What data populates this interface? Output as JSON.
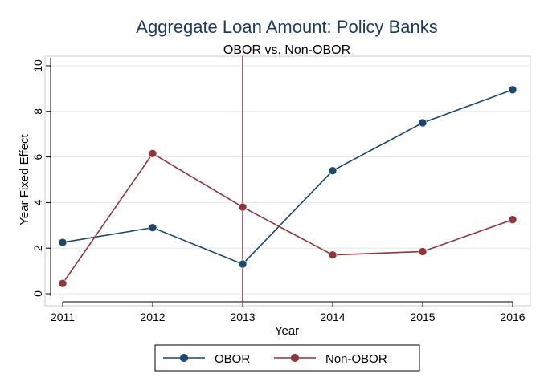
{
  "chart_data": {
    "type": "line",
    "title": "Aggregate Loan Amount: Policy Banks",
    "subtitle": "OBOR vs. Non-OBOR",
    "xlabel": "Year",
    "ylabel": "Year Fixed Effect",
    "x": [
      2011,
      2012,
      2013,
      2014,
      2015,
      2016
    ],
    "xlim": [
      2011,
      2016
    ],
    "ylim": [
      0,
      10
    ],
    "yticks": [
      0,
      2,
      4,
      6,
      8,
      10
    ],
    "grid": true,
    "vline": 2013,
    "series": [
      {
        "name": "OBOR",
        "color": "#1a476f",
        "values": [
          2.25,
          2.9,
          1.3,
          5.4,
          7.5,
          8.95
        ]
      },
      {
        "name": "Non-OBOR",
        "color": "#90353b",
        "values": [
          0.45,
          6.15,
          3.8,
          1.7,
          1.85,
          3.25
        ]
      }
    ],
    "legend_position": "bottom"
  }
}
